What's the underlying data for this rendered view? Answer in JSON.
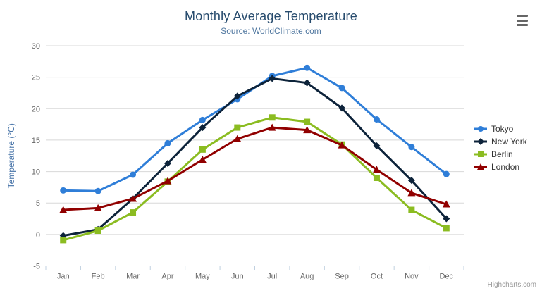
{
  "chart": {
    "title": "Monthly Average Temperature",
    "subtitle": "Source: WorldClimate.com",
    "credits": "Highcharts.com",
    "export_icon": "hamburger-menu-icon"
  },
  "colors": {
    "title_text": "#274b6d",
    "subtitle_text": "#4d759e",
    "axis_label_text": "#666666",
    "axis_title_text": "#4572a7",
    "legend_text": "#333333",
    "gridline": "#d8d8d8",
    "axis_line": "#c0d0e0",
    "credits_text": "#999999",
    "export_icon": "#666666"
  },
  "chart_data": {
    "type": "line",
    "title": "Monthly Average Temperature",
    "subtitle": "Source: WorldClimate.com",
    "categories": [
      "Jan",
      "Feb",
      "Mar",
      "Apr",
      "May",
      "Jun",
      "Jul",
      "Aug",
      "Sep",
      "Oct",
      "Nov",
      "Dec"
    ],
    "xlabel": "",
    "ylabel": "Temperature (°C)",
    "ylim": [
      -5,
      30
    ],
    "yticks": [
      -5,
      0,
      5,
      10,
      15,
      20,
      25,
      30
    ],
    "grid": true,
    "legend_position": "right",
    "series": [
      {
        "name": "Tokyo",
        "color": "#2f7ed8",
        "marker": "circle",
        "values": [
          7.0,
          6.9,
          9.5,
          14.5,
          18.2,
          21.5,
          25.2,
          26.5,
          23.3,
          18.3,
          13.9,
          9.6
        ]
      },
      {
        "name": "New York",
        "color": "#0d233a",
        "marker": "diamond",
        "values": [
          -0.2,
          0.8,
          5.7,
          11.3,
          17.0,
          22.0,
          24.8,
          24.1,
          20.1,
          14.1,
          8.6,
          2.5
        ]
      },
      {
        "name": "Berlin",
        "color": "#8bbc21",
        "marker": "square",
        "values": [
          -0.9,
          0.6,
          3.5,
          8.4,
          13.5,
          17.0,
          18.6,
          17.9,
          14.3,
          9.0,
          3.9,
          1.0
        ]
      },
      {
        "name": "London",
        "color": "#910000",
        "marker": "triangle",
        "values": [
          3.9,
          4.2,
          5.7,
          8.5,
          11.9,
          15.2,
          17.0,
          16.6,
          14.2,
          10.3,
          6.6,
          4.8
        ]
      }
    ]
  }
}
